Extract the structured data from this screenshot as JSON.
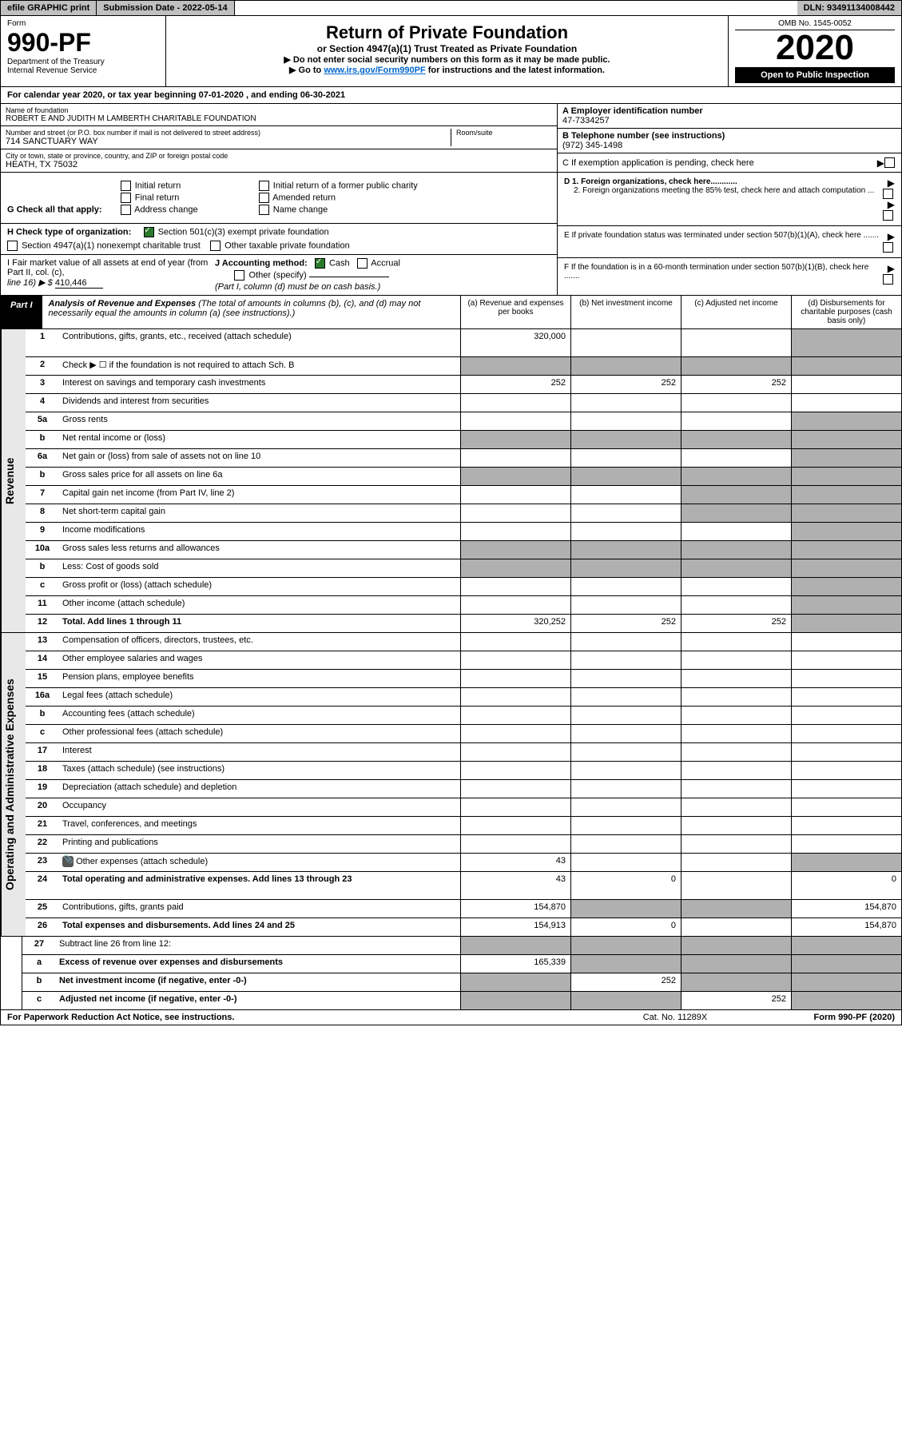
{
  "topbar": {
    "efile": "efile GRAPHIC print",
    "submission": "Submission Date - 2022-05-14",
    "dln": "DLN: 93491134008442"
  },
  "header": {
    "form_label": "Form",
    "form_number": "990-PF",
    "dept1": "Department of the Treasury",
    "dept2": "Internal Revenue Service",
    "title": "Return of Private Foundation",
    "subtitle": "or Section 4947(a)(1) Trust Treated as Private Foundation",
    "instr1": "▶ Do not enter social security numbers on this form as it may be made public.",
    "instr2_pre": "▶ Go to ",
    "instr2_link": "www.irs.gov/Form990PF",
    "instr2_post": " for instructions and the latest information.",
    "omb": "OMB No. 1545-0052",
    "year": "2020",
    "open": "Open to Public Inspection"
  },
  "calyear": "For calendar year 2020, or tax year beginning 07-01-2020                    , and ending 06-30-2021",
  "info": {
    "name_label": "Name of foundation",
    "name": "ROBERT E AND JUDITH M LAMBERTH CHARITABLE FOUNDATION",
    "addr_label": "Number and street (or P.O. box number if mail is not delivered to street address)",
    "addr": "714 SANCTUARY WAY",
    "room_label": "Room/suite",
    "city_label": "City or town, state or province, country, and ZIP or foreign postal code",
    "city": "HEATH, TX  75032",
    "a_label": "A Employer identification number",
    "a_val": "47-7334257",
    "b_label": "B Telephone number (see instructions)",
    "b_val": "(972) 345-1498",
    "c_label": "C If exemption application is pending, check here",
    "d1": "D 1. Foreign organizations, check here............",
    "d2": "2. Foreign organizations meeting the 85% test, check here and attach computation ...",
    "e": "E  If private foundation status was terminated under section 507(b)(1)(A), check here .......",
    "f": "F  If the foundation is in a 60-month termination under section 507(b)(1)(B), check here .......",
    "g_label": "G Check all that apply:",
    "g_initial": "Initial return",
    "g_initial_former": "Initial return of a former public charity",
    "g_final": "Final return",
    "g_amended": "Amended return",
    "g_address": "Address change",
    "g_name": "Name change",
    "h_label": "H Check type of organization:",
    "h_501c3": "Section 501(c)(3) exempt private foundation",
    "h_4947": "Section 4947(a)(1) nonexempt charitable trust",
    "h_other_tax": "Other taxable private foundation",
    "i_label": "I Fair market value of all assets at end of year (from Part II, col. (c),",
    "i_line": "line 16) ▶ $",
    "i_val": "410,446",
    "j_label": "J Accounting method:",
    "j_cash": "Cash",
    "j_accrual": "Accrual",
    "j_other": "Other (specify)",
    "j_note": "(Part I, column (d) must be on cash basis.)"
  },
  "part1": {
    "label": "Part I",
    "title": "Analysis of Revenue and Expenses",
    "title_note": " (The total of amounts in columns (b), (c), and (d) may not necessarily equal the amounts in column (a) (see instructions).)",
    "col_a": "(a)  Revenue and expenses per books",
    "col_b": "(b)  Net investment income",
    "col_c": "(c)  Adjusted net income",
    "col_d": "(d)  Disbursements for charitable purposes (cash basis only)"
  },
  "revenue": {
    "side_label": "Revenue",
    "rows": [
      {
        "num": "1",
        "desc": "Contributions, gifts, grants, etc., received (attach schedule)",
        "a": "320,000"
      },
      {
        "num": "2",
        "desc": "Check ▶ ☐ if the foundation is not required to attach Sch. B"
      },
      {
        "num": "3",
        "desc": "Interest on savings and temporary cash investments",
        "a": "252",
        "b": "252",
        "c": "252"
      },
      {
        "num": "4",
        "desc": "Dividends and interest from securities"
      },
      {
        "num": "5a",
        "desc": "Gross rents"
      },
      {
        "num": "b",
        "desc": "Net rental income or (loss)"
      },
      {
        "num": "6a",
        "desc": "Net gain or (loss) from sale of assets not on line 10"
      },
      {
        "num": "b",
        "desc": "Gross sales price for all assets on line 6a"
      },
      {
        "num": "7",
        "desc": "Capital gain net income (from Part IV, line 2)"
      },
      {
        "num": "8",
        "desc": "Net short-term capital gain"
      },
      {
        "num": "9",
        "desc": "Income modifications"
      },
      {
        "num": "10a",
        "desc": "Gross sales less returns and allowances"
      },
      {
        "num": "b",
        "desc": "Less: Cost of goods sold"
      },
      {
        "num": "c",
        "desc": "Gross profit or (loss) (attach schedule)"
      },
      {
        "num": "11",
        "desc": "Other income (attach schedule)"
      },
      {
        "num": "12",
        "desc": "Total. Add lines 1 through 11",
        "bold": true,
        "a": "320,252",
        "b": "252",
        "c": "252"
      }
    ]
  },
  "expenses": {
    "side_label": "Operating and Administrative Expenses",
    "rows": [
      {
        "num": "13",
        "desc": "Compensation of officers, directors, trustees, etc."
      },
      {
        "num": "14",
        "desc": "Other employee salaries and wages"
      },
      {
        "num": "15",
        "desc": "Pension plans, employee benefits"
      },
      {
        "num": "16a",
        "desc": "Legal fees (attach schedule)"
      },
      {
        "num": "b",
        "desc": "Accounting fees (attach schedule)"
      },
      {
        "num": "c",
        "desc": "Other professional fees (attach schedule)"
      },
      {
        "num": "17",
        "desc": "Interest"
      },
      {
        "num": "18",
        "desc": "Taxes (attach schedule) (see instructions)"
      },
      {
        "num": "19",
        "desc": "Depreciation (attach schedule) and depletion"
      },
      {
        "num": "20",
        "desc": "Occupancy"
      },
      {
        "num": "21",
        "desc": "Travel, conferences, and meetings"
      },
      {
        "num": "22",
        "desc": "Printing and publications"
      },
      {
        "num": "23",
        "desc": "Other expenses (attach schedule)",
        "attach": true,
        "a": "43"
      },
      {
        "num": "24",
        "desc": "Total operating and administrative expenses. Add lines 13 through 23",
        "bold": true,
        "a": "43",
        "b": "0",
        "d": "0"
      },
      {
        "num": "25",
        "desc": "Contributions, gifts, grants paid",
        "a": "154,870",
        "d": "154,870"
      },
      {
        "num": "26",
        "desc": "Total expenses and disbursements. Add lines 24 and 25",
        "bold": true,
        "a": "154,913",
        "b": "0",
        "d": "154,870"
      }
    ]
  },
  "bottom": {
    "rows": [
      {
        "num": "27",
        "desc": "Subtract line 26 from line 12:"
      },
      {
        "num": "a",
        "desc": "Excess of revenue over expenses and disbursements",
        "bold": true,
        "a": "165,339"
      },
      {
        "num": "b",
        "desc": "Net investment income (if negative, enter -0-)",
        "bold": true,
        "b": "252"
      },
      {
        "num": "c",
        "desc": "Adjusted net income (if negative, enter -0-)",
        "bold": true,
        "c": "252"
      }
    ]
  },
  "footer": {
    "left": "For Paperwork Reduction Act Notice, see instructions.",
    "center": "Cat. No. 11289X",
    "right": "Form 990-PF (2020)"
  },
  "colors": {
    "header_bg": "#c0c0c0",
    "shaded": "#b0b0b0",
    "link": "#0066cc",
    "check": "#2a7a2a"
  }
}
